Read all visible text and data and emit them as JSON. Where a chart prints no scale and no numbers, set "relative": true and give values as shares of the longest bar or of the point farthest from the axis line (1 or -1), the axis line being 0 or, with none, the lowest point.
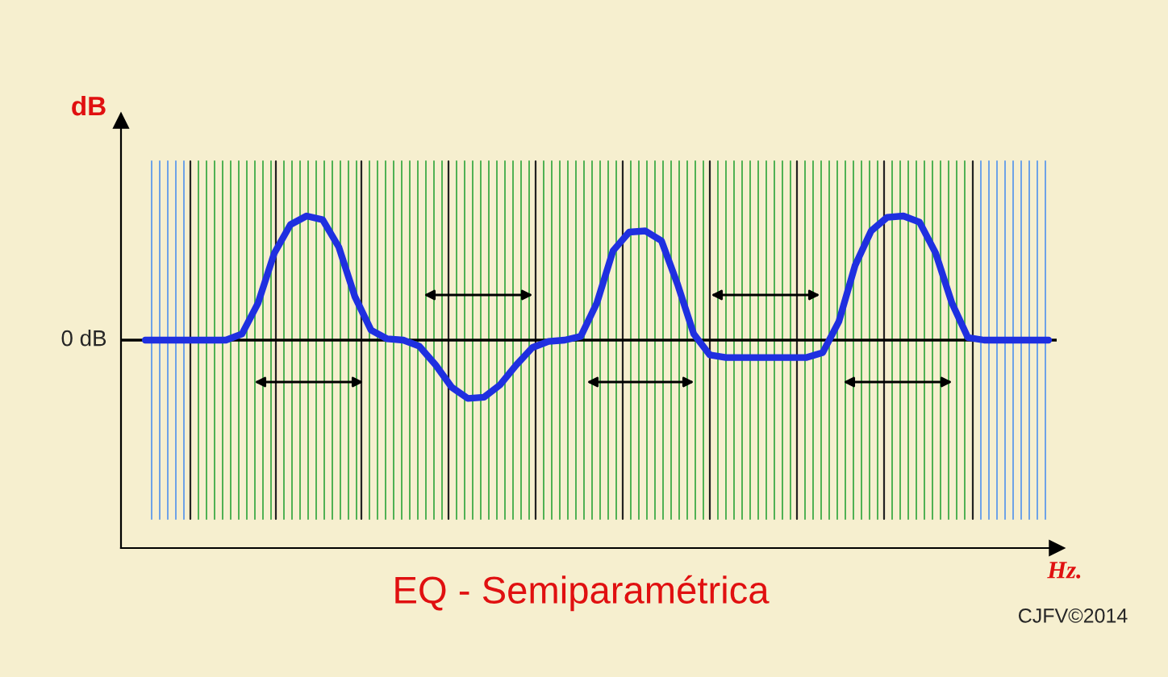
{
  "chart_data": {
    "type": "line",
    "title": "EQ - Semiparamétrica",
    "ylabel": "dB",
    "relative": true,
    "categories": [
      null,
      null,
      null,
      null,
      null,
      null,
      null,
      null,
      null,
      null,
      null,
      null,
      null,
      null,
      null,
      null,
      null,
      null,
      null,
      null,
      null,
      null,
      null,
      null,
      null,
      null,
      null,
      null,
      null,
      null,
      null,
      null,
      null,
      null,
      null,
      null,
      null,
      null,
      null,
      null,
      null,
      null,
      null,
      null,
      null,
      null,
      null,
      null,
      null,
      null,
      null,
      null,
      null,
      null,
      null,
      null,
      null
    ],
    "series": [
      {
        "color": "#1f2fe0",
        "values": [
          0,
          0,
          0,
          0,
          0,
          0,
          0.05,
          0.3,
          0.7,
          0.93,
          1.0,
          0.97,
          0.75,
          0.35,
          0.08,
          0.01,
          0,
          -0.05,
          -0.2,
          -0.38,
          -0.47,
          -0.46,
          -0.36,
          -0.2,
          -0.06,
          -0.01,
          0,
          0.03,
          0.3,
          0.72,
          0.87,
          0.88,
          0.8,
          0.45,
          0.05,
          -0.12,
          -0.14,
          -0.14,
          -0.14,
          -0.14,
          -0.14,
          -0.14,
          -0.1,
          0.15,
          0.6,
          0.88,
          0.99,
          1.0,
          0.95,
          0.7,
          0.3,
          0.02,
          0,
          0,
          0,
          0,
          0
        ]
      }
    ],
    "ref_lines": [
      {
        "axis": "y",
        "value": 0,
        "label": "0 dB",
        "color": "#000000"
      }
    ],
    "annotations": [
      "Hz.",
      "CJFV©2014"
    ],
    "grid": "x",
    "legend": false,
    "marker": "none",
    "line_style": "solid"
  }
}
